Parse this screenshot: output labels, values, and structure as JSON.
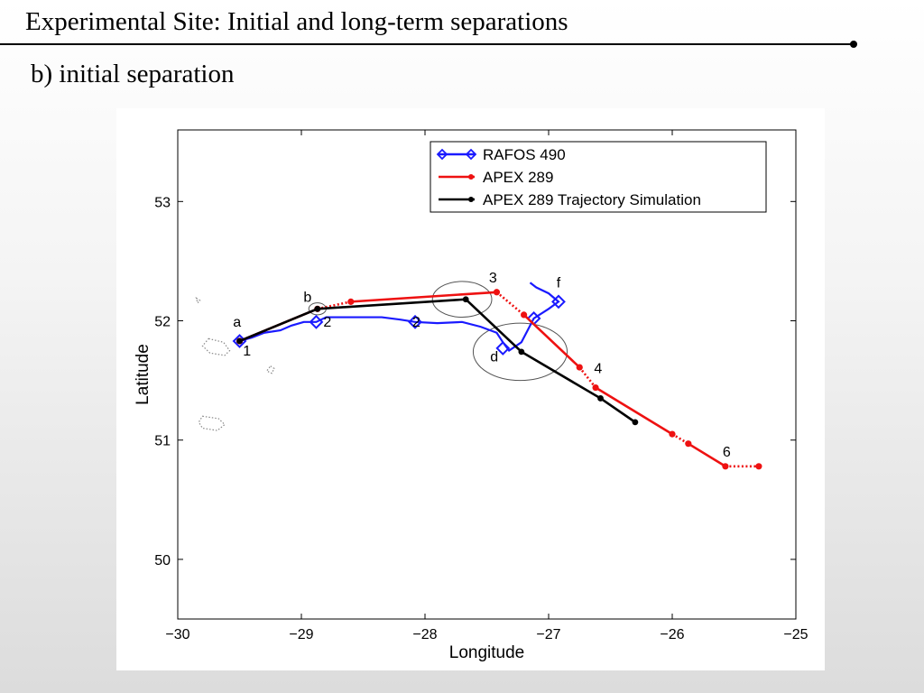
{
  "slide": {
    "title": "Experimental Site: Initial and long-term separations",
    "subtitle": "b) initial separation"
  },
  "colors": {
    "rafos": "#1a1aff",
    "apex": "#ee1111",
    "simulation": "#000000",
    "coastline": "#888888"
  },
  "chart_data": {
    "type": "line",
    "xlabel": "Longitude",
    "ylabel": "Latitude",
    "xlim": [
      -30,
      -25
    ],
    "ylim": [
      49.5,
      53.6
    ],
    "xticks": [
      -30,
      -29,
      -28,
      -27,
      -26,
      -25
    ],
    "xtick_labels": [
      "−30",
      "−29",
      "−28",
      "−27",
      "−26",
      "−25"
    ],
    "yticks": [
      50,
      51,
      52,
      53
    ],
    "ytick_labels": [
      "50",
      "51",
      "52",
      "53"
    ],
    "grid": false,
    "legend_position": "top-right",
    "series": [
      {
        "name": "RAFOS 490",
        "color": "#1a1aff",
        "style": "solid",
        "path": [
          [
            -29.5,
            51.83
          ],
          [
            -29.4,
            51.86
          ],
          [
            -29.3,
            51.9
          ],
          [
            -29.17,
            51.92
          ],
          [
            -29.08,
            51.96
          ],
          [
            -28.98,
            51.99
          ],
          [
            -28.88,
            51.99
          ],
          [
            -28.8,
            52.03
          ],
          [
            -28.6,
            52.03
          ],
          [
            -28.35,
            52.03
          ],
          [
            -28.2,
            52.01
          ],
          [
            -28.08,
            51.99
          ],
          [
            -27.9,
            51.98
          ],
          [
            -27.7,
            51.99
          ],
          [
            -27.55,
            51.95
          ],
          [
            -27.42,
            51.9
          ],
          [
            -27.37,
            51.82
          ],
          [
            -27.32,
            51.75
          ],
          [
            -27.22,
            51.82
          ],
          [
            -27.17,
            51.92
          ],
          [
            -27.12,
            52.02
          ],
          [
            -27.0,
            52.1
          ],
          [
            -26.92,
            52.16
          ],
          [
            -27.0,
            52.23
          ],
          [
            -27.1,
            52.28
          ],
          [
            -27.15,
            52.32
          ]
        ],
        "markers": [
          [
            -29.5,
            51.83
          ],
          [
            -28.88,
            51.99
          ],
          [
            -28.08,
            51.99
          ],
          [
            -27.37,
            51.77
          ],
          [
            -27.12,
            52.02
          ],
          [
            -26.92,
            52.16
          ]
        ]
      },
      {
        "name": "APEX 289",
        "color": "#ee1111",
        "points": [
          [
            -29.5,
            51.83
          ],
          [
            -28.87,
            52.1
          ],
          [
            -28.6,
            52.16
          ],
          [
            -27.42,
            52.24
          ],
          [
            -27.2,
            52.05
          ],
          [
            -26.75,
            51.61
          ],
          [
            -26.62,
            51.44
          ],
          [
            -26.0,
            51.05
          ],
          [
            -25.87,
            50.97
          ],
          [
            -25.57,
            50.78
          ],
          [
            -25.3,
            50.78
          ]
        ],
        "segment_styles": [
          "solid",
          "dotted",
          "solid",
          "dotted",
          "solid",
          "dotted",
          "solid",
          "dotted",
          "solid",
          "dotted"
        ]
      },
      {
        "name": "APEX 289 Trajectory Simulation",
        "color": "#000000",
        "style": "solid",
        "points": [
          [
            -29.5,
            51.83
          ],
          [
            -28.87,
            52.1
          ],
          [
            -27.67,
            52.18
          ],
          [
            -27.22,
            51.74
          ],
          [
            -26.58,
            51.35
          ],
          [
            -26.3,
            51.15
          ]
        ]
      }
    ],
    "annotations": [
      {
        "text": "a",
        "x": -29.52,
        "y": 51.95
      },
      {
        "text": "1",
        "x": -29.44,
        "y": 51.71
      },
      {
        "text": "b",
        "x": -28.95,
        "y": 52.16
      },
      {
        "text": "2",
        "x": -28.79,
        "y": 51.95
      },
      {
        "text": "2",
        "x": -28.07,
        "y": 51.95
      },
      {
        "text": "3",
        "x": -27.45,
        "y": 52.32
      },
      {
        "text": "f",
        "x": -26.92,
        "y": 52.28
      },
      {
        "text": "d",
        "x": -27.44,
        "y": 51.66
      },
      {
        "text": "4",
        "x": -26.6,
        "y": 51.56
      },
      {
        "text": "6",
        "x": -25.56,
        "y": 50.86
      }
    ],
    "ellipses": [
      {
        "cx": -28.87,
        "cy": 52.1,
        "rx": 0.07,
        "ry": 0.05
      },
      {
        "cx": -27.7,
        "cy": 52.18,
        "rx": 0.24,
        "ry": 0.15
      },
      {
        "cx": -27.23,
        "cy": 51.74,
        "rx": 0.38,
        "ry": 0.24
      }
    ],
    "islands": [
      [
        [
          -29.75,
          51.85
        ],
        [
          -29.63,
          51.82
        ],
        [
          -29.58,
          51.75
        ],
        [
          -29.62,
          51.71
        ],
        [
          -29.74,
          51.73
        ],
        [
          -29.8,
          51.79
        ]
      ],
      [
        [
          -29.8,
          51.2
        ],
        [
          -29.67,
          51.18
        ],
        [
          -29.62,
          51.13
        ],
        [
          -29.68,
          51.08
        ],
        [
          -29.8,
          51.1
        ],
        [
          -29.83,
          51.15
        ]
      ],
      [
        [
          -29.25,
          51.62
        ],
        [
          -29.22,
          51.6
        ],
        [
          -29.24,
          51.56
        ],
        [
          -29.28,
          51.58
        ]
      ],
      [
        [
          -29.85,
          52.19
        ],
        [
          -29.82,
          52.17
        ],
        [
          -29.84,
          52.15
        ]
      ]
    ]
  }
}
